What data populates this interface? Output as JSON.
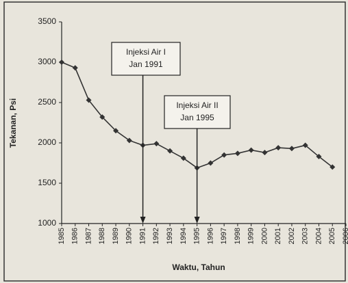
{
  "chart_data": {
    "type": "line",
    "x": [
      1985,
      1986,
      1987,
      1988,
      1989,
      1990,
      1991,
      1992,
      1993,
      1994,
      1995,
      1996,
      1997,
      1998,
      1999,
      2000,
      2001,
      2002,
      2003,
      2004,
      2005
    ],
    "series": [
      {
        "name": "Tekanan",
        "color": "#333333",
        "values": [
          3000,
          2930,
          2530,
          2320,
          2150,
          2030,
          1970,
          1990,
          1900,
          1810,
          1690,
          1750,
          1850,
          1870,
          1910,
          1880,
          1940,
          1930,
          1970,
          1830,
          1700
        ]
      }
    ],
    "xlabel": "Waktu, Tahun",
    "ylabel": "Tekanan, Psi",
    "xlim": [
      1985,
      2006
    ],
    "xticks": [
      1985,
      1986,
      1987,
      1988,
      1989,
      1990,
      1991,
      1992,
      1993,
      1994,
      1995,
      1996,
      1997,
      1998,
      1999,
      2000,
      2001,
      2002,
      2003,
      2004,
      2005,
      2006
    ],
    "ylim": [
      1000,
      3500
    ],
    "yticks": [
      1000,
      1500,
      2000,
      2500,
      3000,
      3500
    ],
    "grid": false,
    "annotations": [
      {
        "x": 1991,
        "text": [
          "Injeksi Air I",
          "Jan 1991"
        ]
      },
      {
        "x": 1995,
        "text": [
          "Injeksi Air II",
          "Jan 1995"
        ]
      }
    ]
  }
}
